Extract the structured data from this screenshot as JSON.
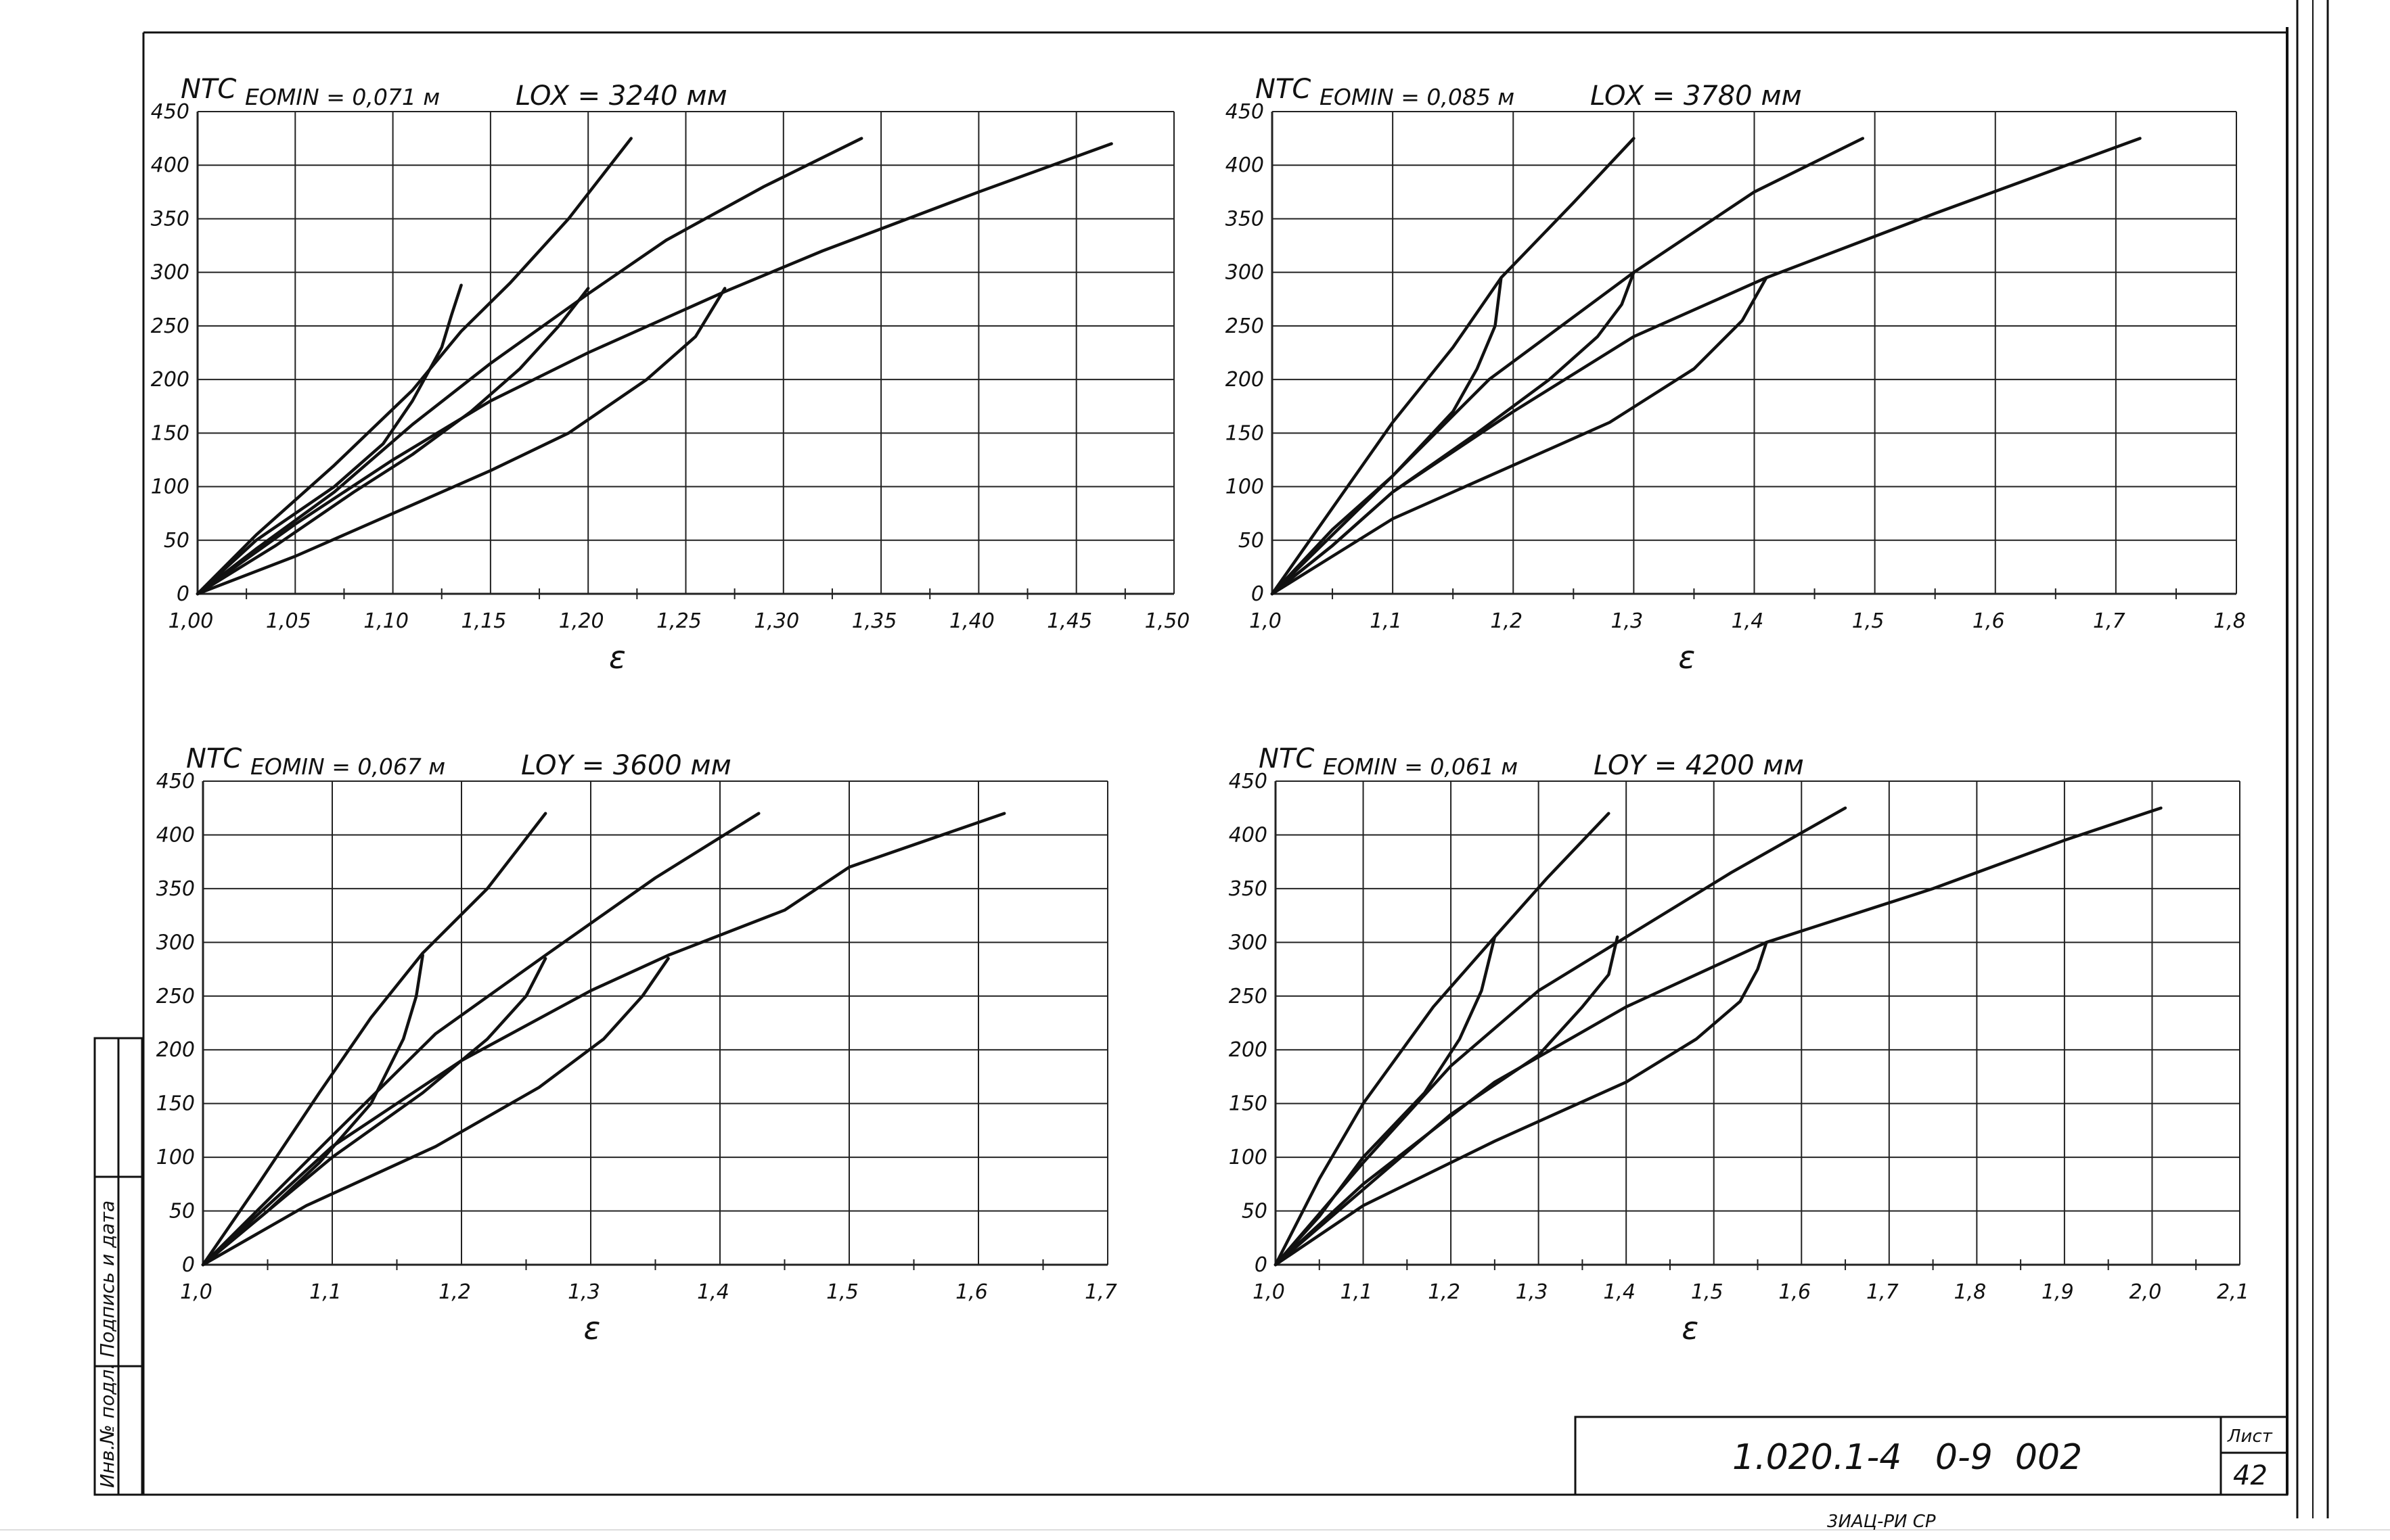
{
  "sheet": {
    "code": "1.020.1-4   0-9  002",
    "sheet_label": "Лист",
    "sheet_number": "42",
    "side_stamp": "Инв.№ подл.  Подпись и дата",
    "bottom_note": "3ИАЦ-РИ   СР"
  },
  "chart_data": [
    {
      "type": "line",
      "ylabel": "NТС",
      "xlabel": "ε",
      "param": "EOMIN = 0,071 м",
      "title": "LOX = 3240 мм",
      "xlim": [
        1.0,
        1.5
      ],
      "ylim": [
        0,
        450
      ],
      "xticks": [
        1.0,
        1.05,
        1.1,
        1.15,
        1.2,
        1.25,
        1.3,
        1.35,
        1.4,
        1.45,
        1.5
      ],
      "xtick_labels": [
        "1,00",
        "1,05",
        "1,10",
        "1,15",
        "1,20",
        "1,25",
        "1,30",
        "1,35",
        "1,40",
        "1,45",
        "1,50"
      ],
      "yticks": [
        0,
        50,
        100,
        150,
        200,
        250,
        300,
        350,
        400,
        450
      ],
      "ytick_labels": [
        "0",
        "50",
        "100",
        "150",
        "200",
        "250",
        "300",
        "350",
        "400",
        "450"
      ],
      "grid": true,
      "series": [
        {
          "points": [
            [
              1.0,
              0
            ],
            [
              1.03,
              55
            ],
            [
              1.07,
              120
            ],
            [
              1.11,
              190
            ],
            [
              1.135,
              245
            ],
            [
              1.16,
              290
            ],
            [
              1.19,
              350
            ],
            [
              1.222,
              425
            ]
          ]
        },
        {
          "points": [
            [
              1.0,
              0
            ],
            [
              1.03,
              42
            ],
            [
              1.07,
              95
            ],
            [
              1.11,
              158
            ],
            [
              1.15,
              215
            ],
            [
              1.2,
              280
            ],
            [
              1.24,
              330
            ],
            [
              1.29,
              380
            ],
            [
              1.34,
              425
            ]
          ]
        },
        {
          "points": [
            [
              1.0,
              0
            ],
            [
              1.05,
              65
            ],
            [
              1.1,
              125
            ],
            [
              1.15,
              180
            ],
            [
              1.2,
              225
            ],
            [
              1.27,
              282
            ],
            [
              1.32,
              320
            ],
            [
              1.4,
              375
            ],
            [
              1.468,
              420
            ]
          ]
        },
        {
          "points": [
            [
              1.0,
              0
            ],
            [
              1.05,
              35
            ],
            [
              1.1,
              75
            ],
            [
              1.15,
              115
            ],
            [
              1.19,
              150
            ],
            [
              1.23,
              200
            ],
            [
              1.255,
              240
            ],
            [
              1.27,
              285
            ]
          ]
        },
        {
          "points": [
            [
              1.0,
              0
            ],
            [
              1.04,
              45
            ],
            [
              1.08,
              95
            ],
            [
              1.11,
              130
            ],
            [
              1.14,
              170
            ],
            [
              1.165,
              210
            ],
            [
              1.185,
              250
            ],
            [
              1.2,
              285
            ]
          ]
        },
        {
          "points": [
            [
              1.0,
              0
            ],
            [
              1.03,
              50
            ],
            [
              1.07,
              100
            ],
            [
              1.095,
              140
            ],
            [
              1.11,
              180
            ],
            [
              1.125,
              230
            ],
            [
              1.13,
              260
            ],
            [
              1.135,
              288
            ]
          ]
        }
      ]
    },
    {
      "type": "line",
      "ylabel": "NТС",
      "xlabel": "ε",
      "param": "EOMIN = 0,085 м",
      "title": "LOX = 3780 мм",
      "xlim": [
        1.0,
        1.8
      ],
      "ylim": [
        0,
        450
      ],
      "xticks": [
        1.0,
        1.1,
        1.2,
        1.3,
        1.4,
        1.5,
        1.6,
        1.7,
        1.8
      ],
      "xtick_labels": [
        "1,0",
        "1,1",
        "1,2",
        "1,3",
        "1,4",
        "1,5",
        "1,6",
        "1,7",
        "1,8"
      ],
      "yticks": [
        0,
        50,
        100,
        150,
        200,
        250,
        300,
        350,
        400,
        450
      ],
      "ytick_labels": [
        "0",
        "50",
        "100",
        "150",
        "200",
        "250",
        "300",
        "350",
        "400",
        "450"
      ],
      "grid": true,
      "series": [
        {
          "points": [
            [
              1.0,
              0
            ],
            [
              1.05,
              80
            ],
            [
              1.1,
              160
            ],
            [
              1.15,
              230
            ],
            [
              1.19,
              295
            ],
            [
              1.25,
              365
            ],
            [
              1.3,
              425
            ]
          ]
        },
        {
          "points": [
            [
              1.0,
              0
            ],
            [
              1.05,
              55
            ],
            [
              1.1,
              110
            ],
            [
              1.18,
              200
            ],
            [
              1.3,
              300
            ],
            [
              1.4,
              375
            ],
            [
              1.49,
              425
            ]
          ]
        },
        {
          "points": [
            [
              1.0,
              0
            ],
            [
              1.05,
              45
            ],
            [
              1.1,
              95
            ],
            [
              1.2,
              170
            ],
            [
              1.3,
              240
            ],
            [
              1.41,
              295
            ],
            [
              1.55,
              355
            ],
            [
              1.72,
              425
            ]
          ]
        },
        {
          "points": [
            [
              1.0,
              0
            ],
            [
              1.05,
              35
            ],
            [
              1.1,
              70
            ],
            [
              1.2,
              120
            ],
            [
              1.28,
              160
            ],
            [
              1.35,
              210
            ],
            [
              1.39,
              255
            ],
            [
              1.41,
              295
            ]
          ]
        },
        {
          "points": [
            [
              1.0,
              0
            ],
            [
              1.05,
              45
            ],
            [
              1.1,
              95
            ],
            [
              1.17,
              150
            ],
            [
              1.23,
              200
            ],
            [
              1.27,
              240
            ],
            [
              1.29,
              270
            ],
            [
              1.3,
              300
            ]
          ]
        },
        {
          "points": [
            [
              1.0,
              0
            ],
            [
              1.05,
              60
            ],
            [
              1.1,
              110
            ],
            [
              1.15,
              170
            ],
            [
              1.17,
              210
            ],
            [
              1.185,
              250
            ],
            [
              1.19,
              295
            ]
          ]
        }
      ]
    },
    {
      "type": "line",
      "ylabel": "NТС",
      "xlabel": "ε",
      "param": "EOMIN = 0,067 м",
      "title": "LOY = 3600 мм",
      "xlim": [
        1.0,
        1.7
      ],
      "ylim": [
        0,
        450
      ],
      "xticks": [
        1.0,
        1.1,
        1.2,
        1.3,
        1.4,
        1.5,
        1.6,
        1.7
      ],
      "xtick_labels": [
        "1,0",
        "1,1",
        "1,2",
        "1,3",
        "1,4",
        "1,5",
        "1,6",
        "1,7"
      ],
      "yticks": [
        0,
        50,
        100,
        150,
        200,
        250,
        300,
        350,
        400,
        450
      ],
      "ytick_labels": [
        "0",
        "50",
        "100",
        "150",
        "200",
        "250",
        "300",
        "350",
        "400",
        "450"
      ],
      "grid": true,
      "series": [
        {
          "points": [
            [
              1.0,
              0
            ],
            [
              1.04,
              70
            ],
            [
              1.09,
              160
            ],
            [
              1.13,
              230
            ],
            [
              1.17,
              290
            ],
            [
              1.22,
              350
            ],
            [
              1.265,
              420
            ]
          ]
        },
        {
          "points": [
            [
              1.0,
              0
            ],
            [
              1.05,
              60
            ],
            [
              1.1,
              120
            ],
            [
              1.18,
              215
            ],
            [
              1.265,
              288
            ],
            [
              1.35,
              360
            ],
            [
              1.43,
              420
            ]
          ]
        },
        {
          "points": [
            [
              1.0,
              0
            ],
            [
              1.1,
              110
            ],
            [
              1.2,
              190
            ],
            [
              1.3,
              255
            ],
            [
              1.36,
              288
            ],
            [
              1.45,
              330
            ],
            [
              1.5,
              370
            ],
            [
              1.62,
              420
            ]
          ]
        },
        {
          "points": [
            [
              1.0,
              0
            ],
            [
              1.08,
              55
            ],
            [
              1.18,
              110
            ],
            [
              1.26,
              165
            ],
            [
              1.31,
              210
            ],
            [
              1.34,
              250
            ],
            [
              1.36,
              285
            ]
          ]
        },
        {
          "points": [
            [
              1.0,
              0
            ],
            [
              1.05,
              50
            ],
            [
              1.1,
              100
            ],
            [
              1.17,
              160
            ],
            [
              1.22,
              210
            ],
            [
              1.25,
              250
            ],
            [
              1.265,
              285
            ]
          ]
        },
        {
          "points": [
            [
              1.0,
              0
            ],
            [
              1.05,
              50
            ],
            [
              1.09,
              95
            ],
            [
              1.13,
              150
            ],
            [
              1.155,
              210
            ],
            [
              1.165,
              250
            ],
            [
              1.17,
              288
            ]
          ]
        }
      ]
    },
    {
      "type": "line",
      "ylabel": "NТС",
      "xlabel": "ε",
      "param": "EOMIN = 0,061 м",
      "title": "LOY = 4200 мм",
      "xlim": [
        1.0,
        2.1
      ],
      "ylim": [
        0,
        450
      ],
      "xticks": [
        1.0,
        1.1,
        1.2,
        1.3,
        1.4,
        1.5,
        1.6,
        1.7,
        1.8,
        1.9,
        2.0,
        2.1
      ],
      "xtick_labels": [
        "1,0",
        "1,1",
        "1,2",
        "1,3",
        "1,4",
        "1,5",
        "1,6",
        "1,7",
        "1,8",
        "1,9",
        "2,0",
        "2,1"
      ],
      "yticks": [
        0,
        50,
        100,
        150,
        200,
        250,
        300,
        350,
        400,
        450
      ],
      "ytick_labels": [
        "0",
        "50",
        "100",
        "150",
        "200",
        "250",
        "300",
        "350",
        "400",
        "450"
      ],
      "grid": true,
      "series": [
        {
          "points": [
            [
              1.0,
              0
            ],
            [
              1.05,
              80
            ],
            [
              1.1,
              150
            ],
            [
              1.18,
              240
            ],
            [
              1.25,
              305
            ],
            [
              1.31,
              360
            ],
            [
              1.38,
              420
            ]
          ]
        },
        {
          "points": [
            [
              1.0,
              0
            ],
            [
              1.1,
              95
            ],
            [
              1.2,
              185
            ],
            [
              1.3,
              255
            ],
            [
              1.4,
              305
            ],
            [
              1.52,
              365
            ],
            [
              1.65,
              425
            ]
          ]
        },
        {
          "points": [
            [
              1.0,
              0
            ],
            [
              1.1,
              75
            ],
            [
              1.25,
              170
            ],
            [
              1.4,
              240
            ],
            [
              1.56,
              300
            ],
            [
              1.75,
              350
            ],
            [
              1.9,
              395
            ],
            [
              2.01,
              425
            ]
          ]
        },
        {
          "points": [
            [
              1.0,
              0
            ],
            [
              1.1,
              55
            ],
            [
              1.25,
              115
            ],
            [
              1.4,
              170
            ],
            [
              1.48,
              210
            ],
            [
              1.53,
              245
            ],
            [
              1.55,
              275
            ],
            [
              1.56,
              300
            ]
          ]
        },
        {
          "points": [
            [
              1.0,
              0
            ],
            [
              1.1,
              70
            ],
            [
              1.2,
              140
            ],
            [
              1.3,
              195
            ],
            [
              1.35,
              240
            ],
            [
              1.38,
              270
            ],
            [
              1.39,
              305
            ]
          ]
        },
        {
          "points": [
            [
              1.0,
              0
            ],
            [
              1.05,
              45
            ],
            [
              1.1,
              100
            ],
            [
              1.17,
              160
            ],
            [
              1.21,
              210
            ],
            [
              1.235,
              255
            ],
            [
              1.25,
              305
            ]
          ]
        }
      ]
    }
  ]
}
